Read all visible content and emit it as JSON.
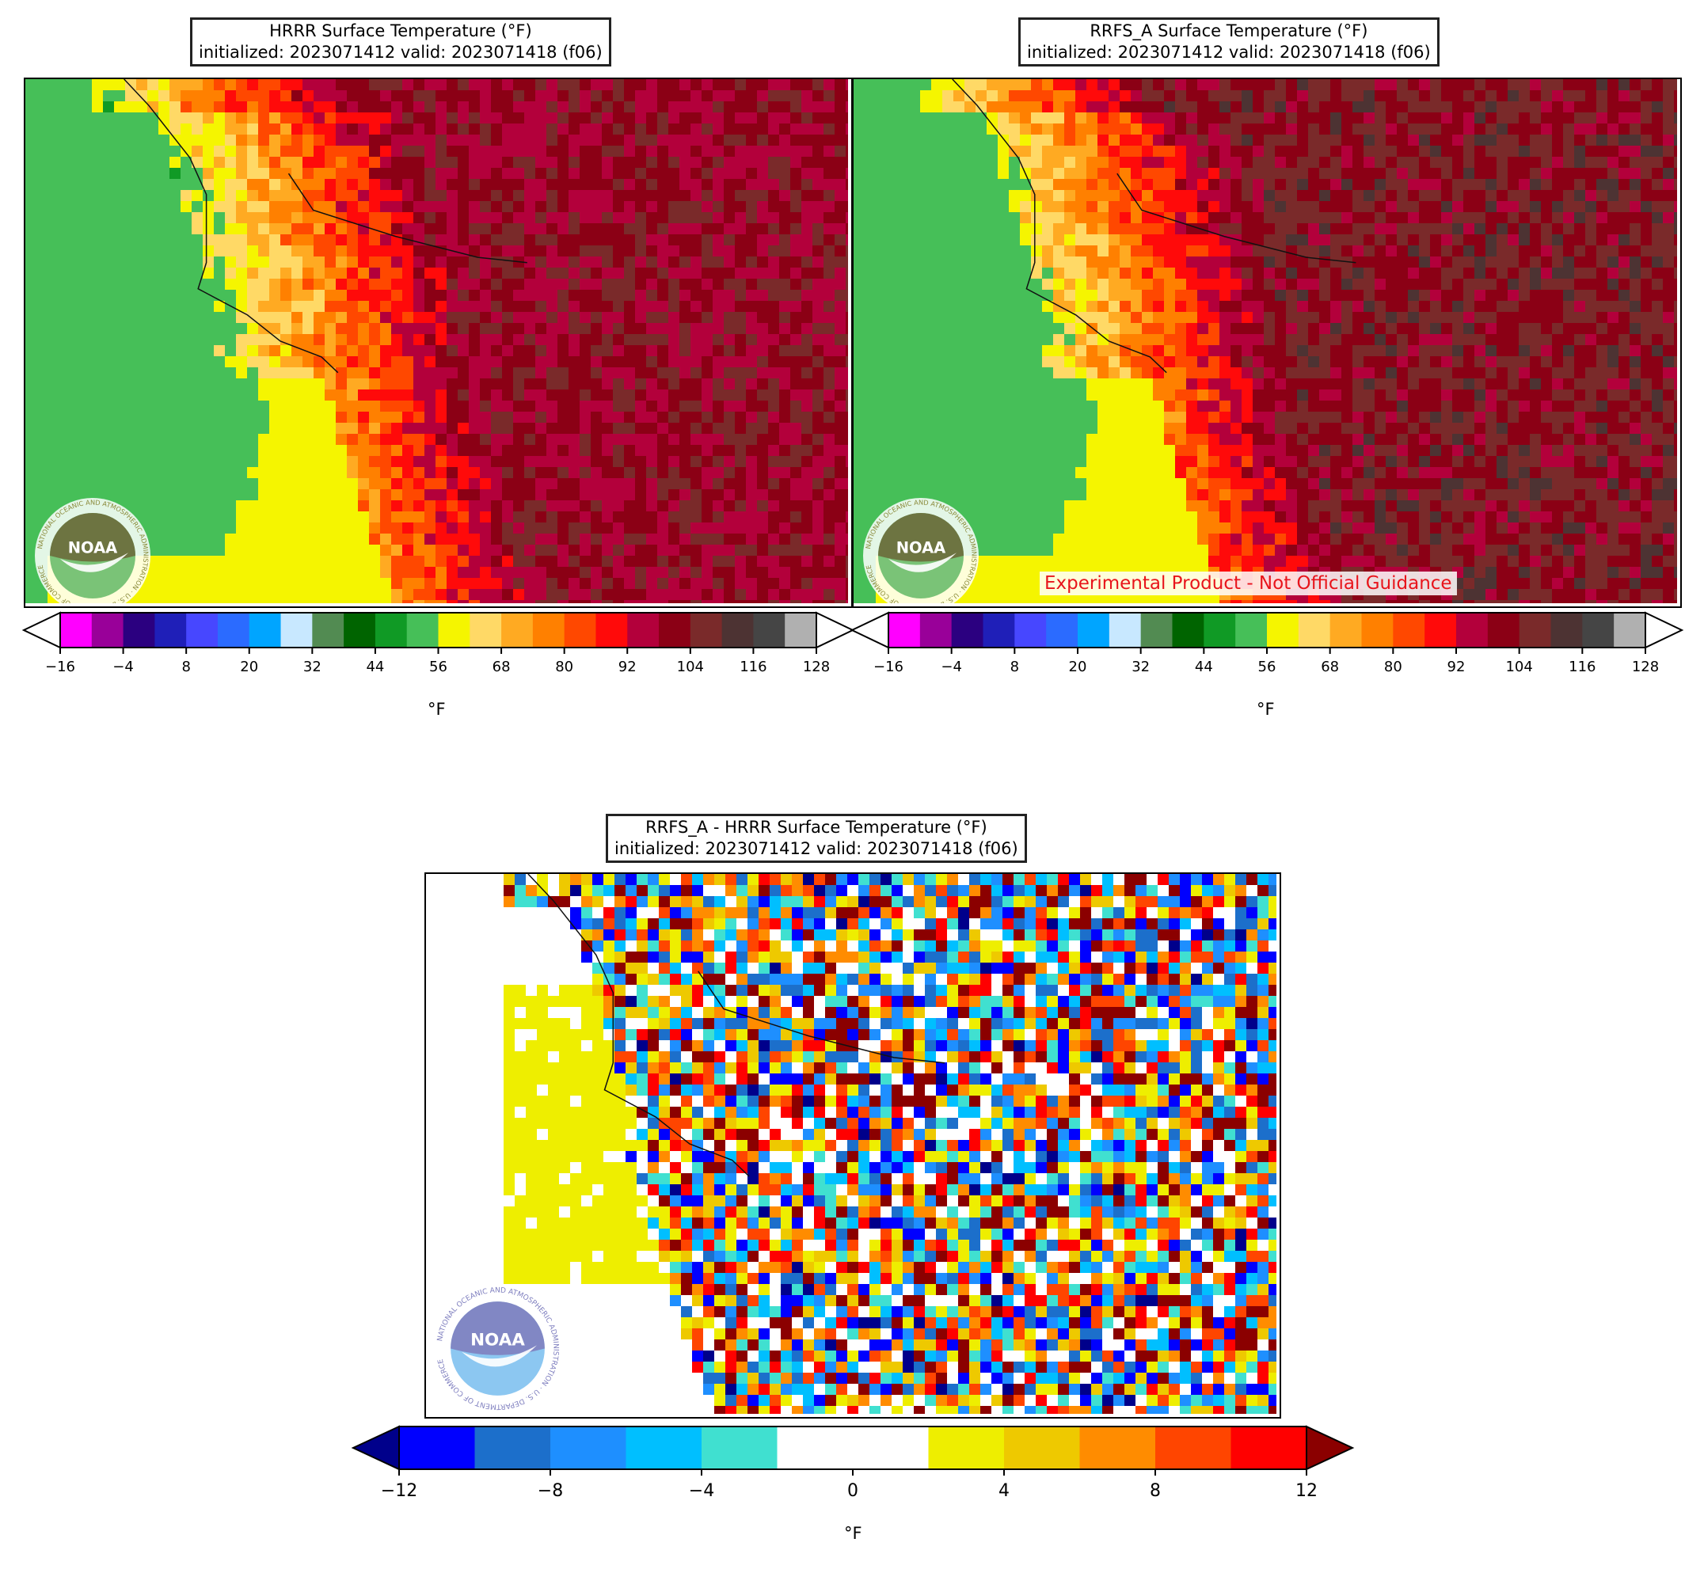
{
  "panels": {
    "hrrr": {
      "title_line1": "HRRR Surface Temperature (°F)",
      "title_line2": "initialized: 2023071412 valid: 2023071418 (f06)",
      "unit": "°F"
    },
    "rrfs": {
      "title_line1": "RRFS_A Surface Temperature (°F)",
      "title_line2": "initialized: 2023071412 valid: 2023071418 (f06)",
      "unit": "°F",
      "banner": "Experimental Product - Not Official Guidance"
    },
    "diff": {
      "title_line1": "RRFS_A - HRRR Surface Temperature (°F)",
      "title_line2": "initialized: 2023071412 valid: 2023071418 (f06)",
      "unit": "°F"
    }
  },
  "logo": {
    "text": "NOAA",
    "ring_text": "NATIONAL OCEANIC AND ATMOSPHERIC ADMINISTRATION · U.S. DEPARTMENT OF COMMERCE"
  },
  "temp_colorbar": {
    "bounds": [
      -16,
      -10,
      -4,
      2,
      8,
      14,
      20,
      26,
      32,
      38,
      44,
      50,
      56,
      62,
      68,
      74,
      80,
      86,
      92,
      98,
      104,
      110,
      116,
      122,
      128
    ],
    "tick_labels": [
      "−16",
      "−4",
      "8",
      "20",
      "32",
      "44",
      "56",
      "68",
      "80",
      "92",
      "104",
      "116",
      "128"
    ],
    "tick_values": [
      -16,
      -4,
      8,
      20,
      32,
      44,
      56,
      68,
      80,
      92,
      104,
      116,
      128
    ],
    "colors": [
      "#ff00ff",
      "#990099",
      "#2b0080",
      "#1f1fb8",
      "#4747ff",
      "#2b6bff",
      "#00a5ff",
      "#c8e8ff",
      "#528b52",
      "#006400",
      "#109a25",
      "#46bf58",
      "#f5f500",
      "#ffd966",
      "#ffaa22",
      "#ff8000",
      "#ff4800",
      "#ff0a0a",
      "#b3003b",
      "#8b0015",
      "#7a2a2a",
      "#4d3333",
      "#454545",
      "#b0b0b0"
    ],
    "over_color": "#ffffff",
    "under_color": "#ffffff"
  },
  "diff_colorbar": {
    "bounds": [
      -12,
      -10,
      -8,
      -6,
      -4,
      -2,
      2,
      4,
      6,
      8,
      10,
      12
    ],
    "tick_labels": [
      "−12",
      "−8",
      "−4",
      "0",
      "4",
      "8",
      "12"
    ],
    "tick_values": [
      -12,
      -8,
      -4,
      0,
      4,
      8,
      12
    ],
    "colors": [
      "#0000ff",
      "#1c6fcb",
      "#1e8fff",
      "#00bfff",
      "#40e0d0",
      "#ffffff",
      "#eeee00",
      "#eec900",
      "#ff8c00",
      "#ff4500",
      "#ff0000"
    ],
    "over_color": "#8b0000",
    "under_color": "#00008b"
  }
}
